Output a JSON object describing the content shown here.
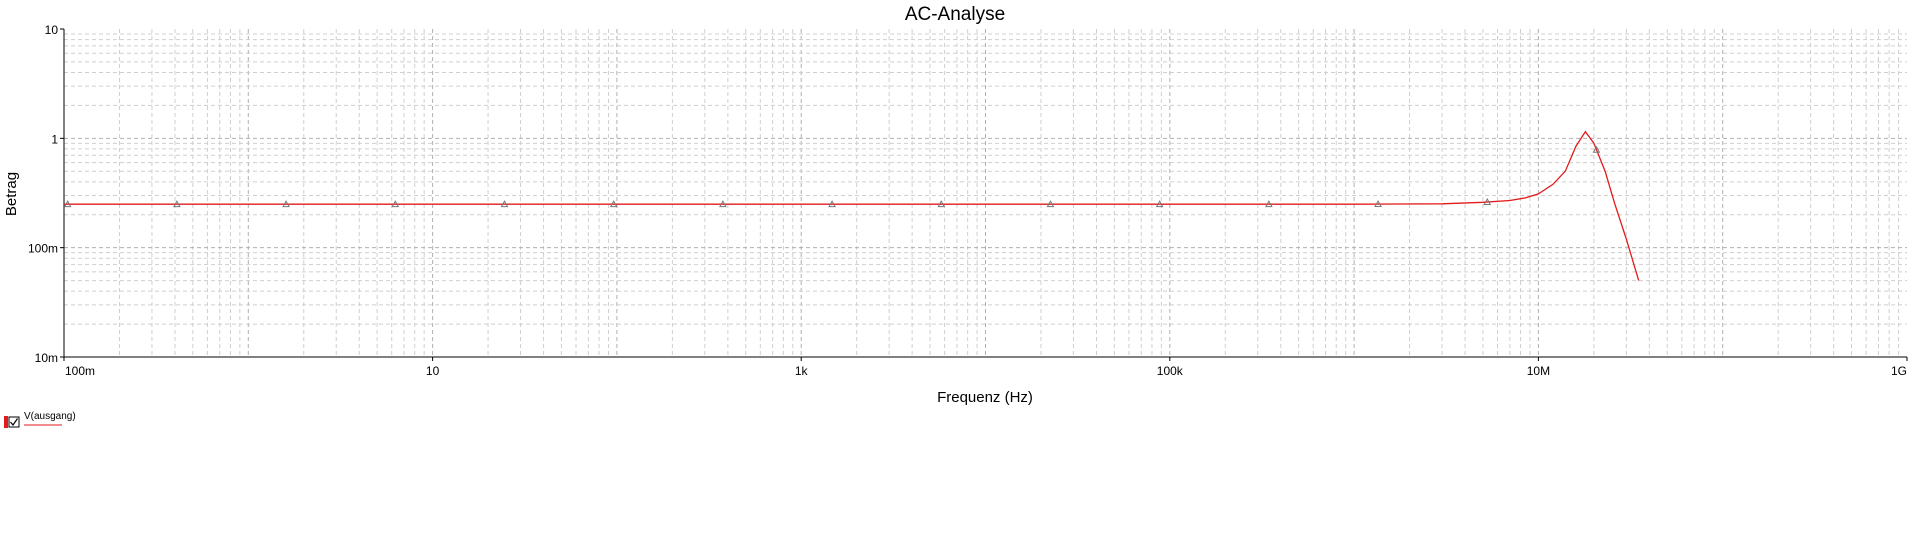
{
  "chart_data": {
    "type": "line",
    "title": "AC-Analyse",
    "xlabel": "Frequenz (Hz)",
    "ylabel": "Betrag",
    "x_scale": "log",
    "y_scale": "log",
    "xlim": [
      0.1,
      1000000000
    ],
    "ylim": [
      0.01,
      10
    ],
    "x_tick_values": [
      0.1,
      10,
      1000,
      100000,
      10000000,
      1000000000
    ],
    "x_tick_labels": [
      "100m",
      "10",
      "1k",
      "100k",
      "10M",
      "1G"
    ],
    "y_tick_values": [
      10,
      1,
      0.1,
      0.01
    ],
    "y_tick_labels": [
      "10",
      "1",
      "100m",
      "10m"
    ],
    "grid": true,
    "series": [
      {
        "name": "V(ausgang)",
        "color": "#e31a1c",
        "marker": "triangle",
        "x": [
          0.1,
          1,
          10,
          100,
          1000,
          10000,
          100000,
          1000000,
          3000000,
          5000000,
          7000000,
          8500000,
          10000000,
          12000000,
          14000000,
          16000000,
          18000000,
          20000000,
          23000000,
          26000000,
          30000000,
          35000000
        ],
        "y": [
          0.25,
          0.25,
          0.25,
          0.25,
          0.25,
          0.25,
          0.25,
          0.25,
          0.252,
          0.26,
          0.27,
          0.285,
          0.31,
          0.38,
          0.5,
          0.85,
          1.15,
          0.9,
          0.5,
          0.25,
          0.12,
          0.05
        ]
      }
    ],
    "legend_position": "bottom-left"
  },
  "legend": {
    "entries": [
      {
        "label": "V(ausgang)",
        "icon": "checkbox-icon"
      }
    ]
  }
}
